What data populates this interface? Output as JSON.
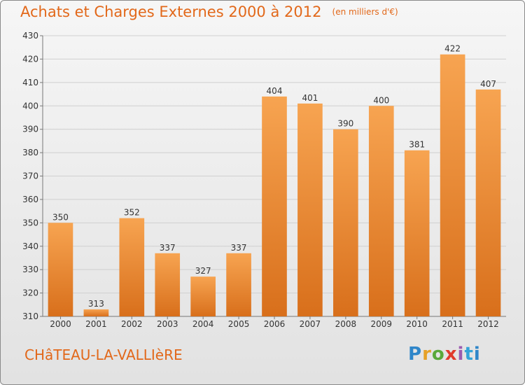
{
  "header": {
    "title": "Achats et Charges Externes 2000 à 2012",
    "unit": "(en milliers d'€)"
  },
  "place": "CHâTEAU-LA-VALLIèRE",
  "logo": {
    "text": "Proxiti"
  },
  "colors": {
    "accent": "#e2681a",
    "bar_top": "#f7a451",
    "bar_bottom": "#d86f1b"
  },
  "chart_data": {
    "type": "bar",
    "categories": [
      "2000",
      "2001",
      "2002",
      "2003",
      "2004",
      "2005",
      "2006",
      "2007",
      "2008",
      "2009",
      "2010",
      "2011",
      "2012"
    ],
    "values": [
      350,
      313,
      352,
      337,
      327,
      337,
      404,
      401,
      390,
      400,
      381,
      422,
      407
    ],
    "ylim": [
      310,
      430
    ],
    "yticks": [
      310,
      320,
      330,
      340,
      350,
      360,
      370,
      380,
      390,
      400,
      410,
      420,
      430
    ],
    "grid": true,
    "data_labels": true,
    "legend": "none"
  }
}
